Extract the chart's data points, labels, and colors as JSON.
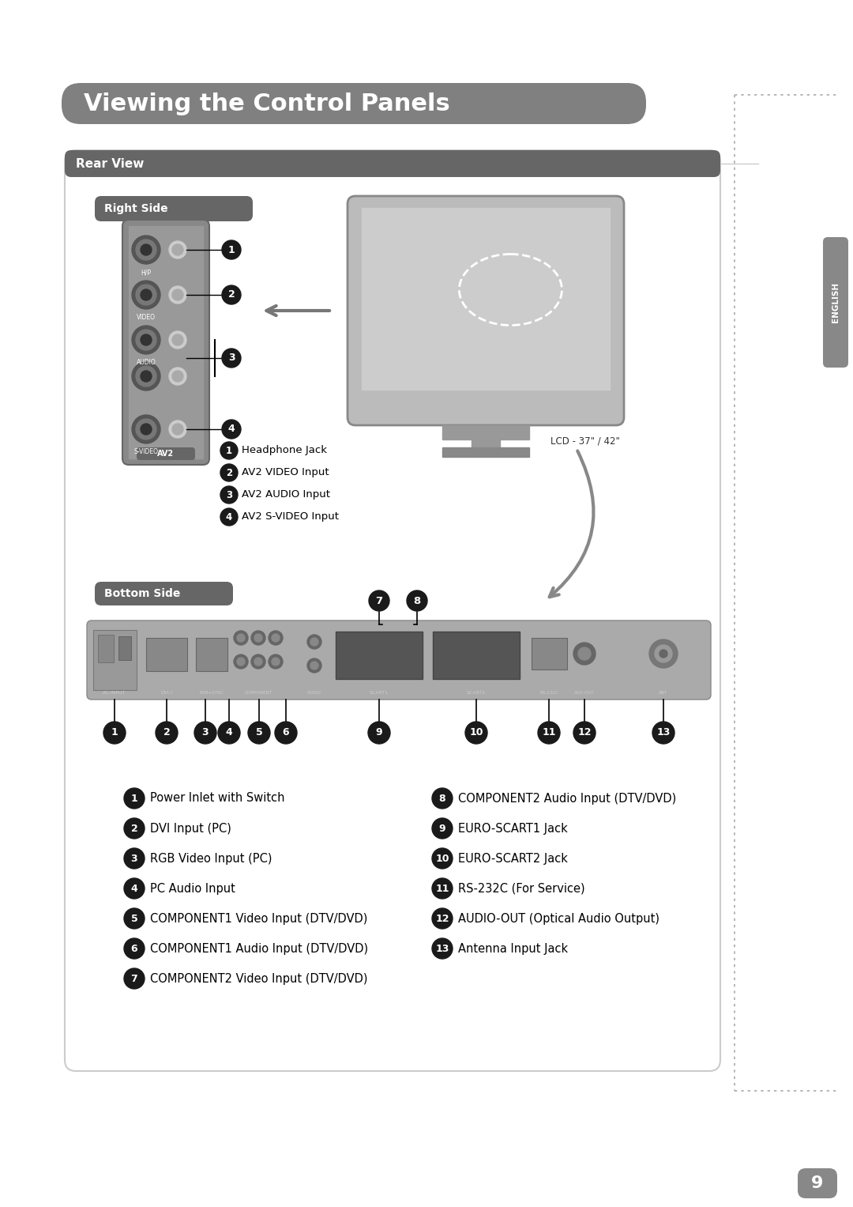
{
  "title": "Viewing the Control Panels",
  "title_bg": "#808080",
  "title_text_color": "#ffffff",
  "page_bg": "#ffffff",
  "header_bg": "#666666",
  "header_text_color": "#ffffff",
  "page_number": "9",
  "page_number_bg": "#888888",
  "dotted_line_color": "#aaaaaa",
  "english_tab_bg": "#888888",
  "english_tab_text": "ENGLISH",
  "rear_view_label": "Rear View",
  "right_side_label": "Right Side",
  "bottom_side_label": "Bottom Side",
  "lcd_label": "LCD - 37\" / 42\"",
  "content_box_color": "#ffffff",
  "content_box_border": "#cccccc",
  "right_side_items": [
    {
      "num": "1",
      "text": "Headphone Jack"
    },
    {
      "num": "2",
      "text": "AV2 VIDEO Input"
    },
    {
      "num": "3",
      "text": "AV2 AUDIO Input"
    },
    {
      "num": "4",
      "text": "AV2 S-VIDEO Input"
    }
  ],
  "bottom_side_items_left": [
    {
      "num": "1",
      "text": "Power Inlet with Switch"
    },
    {
      "num": "2",
      "text": "DVI Input (PC)"
    },
    {
      "num": "3",
      "text": "RGB Video Input (PC)"
    },
    {
      "num": "4",
      "text": "PC Audio Input"
    },
    {
      "num": "5",
      "text": "COMPONENT1 Video Input (DTV/DVD)"
    },
    {
      "num": "6",
      "text": "COMPONENT1 Audio Input (DTV/DVD)"
    },
    {
      "num": "7",
      "text": "COMPONENT2 Video Input (DTV/DVD)"
    }
  ],
  "bottom_side_items_right": [
    {
      "num": "8",
      "text": "COMPONENT2 Audio Input (DTV/DVD)"
    },
    {
      "num": "9",
      "text": "EURO-SCART1 Jack"
    },
    {
      "num": "10",
      "text": "EURO-SCART2 Jack"
    },
    {
      "num": "11",
      "text": "RS-232C (For Service)"
    },
    {
      "num": "12",
      "text": "AUDIO-OUT (Optical Audio Output)"
    },
    {
      "num": "13",
      "text": "Antenna Input Jack"
    }
  ]
}
